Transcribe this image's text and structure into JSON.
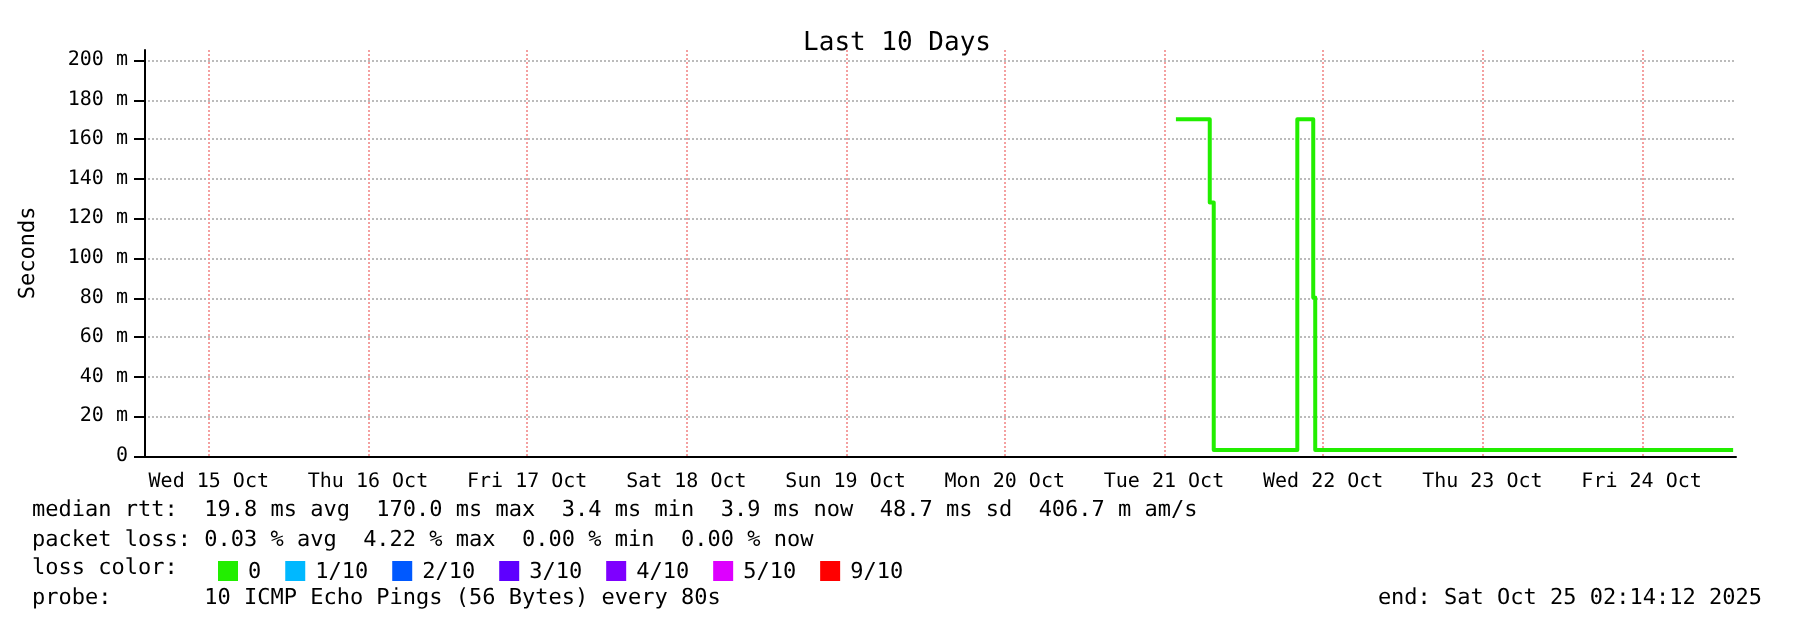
{
  "chart_data": {
    "type": "step",
    "title": "Last 10 Days",
    "ylabel": "Seconds",
    "xlim": [
      "2025-10-15T02:14",
      "2025-10-25T02:14"
    ],
    "xticks": [
      {
        "value": "2025-10-15T12:00",
        "label": "Wed 15 Oct"
      },
      {
        "value": "2025-10-16T12:00",
        "label": "Thu 16 Oct"
      },
      {
        "value": "2025-10-17T12:00",
        "label": "Fri 17 Oct"
      },
      {
        "value": "2025-10-18T12:00",
        "label": "Sat 18 Oct"
      },
      {
        "value": "2025-10-19T12:00",
        "label": "Sun 19 Oct"
      },
      {
        "value": "2025-10-20T12:00",
        "label": "Mon 20 Oct"
      },
      {
        "value": "2025-10-21T12:00",
        "label": "Tue 21 Oct"
      },
      {
        "value": "2025-10-22T12:00",
        "label": "Wed 22 Oct"
      },
      {
        "value": "2025-10-23T12:00",
        "label": "Thu 23 Oct"
      },
      {
        "value": "2025-10-24T12:00",
        "label": "Fri 24 Oct"
      }
    ],
    "ylim": [
      0,
      205
    ],
    "yticks": [
      0,
      {
        "value": 20,
        "label": "20 m"
      },
      {
        "value": 40,
        "label": "40 m"
      },
      {
        "value": 60,
        "label": "60 m"
      },
      {
        "value": 80,
        "label": "80 m"
      },
      {
        "value": 100,
        "label": "100 m"
      },
      {
        "value": 120,
        "label": "120 m"
      },
      {
        "value": 140,
        "label": "140 m"
      },
      {
        "value": 160,
        "label": "160 m"
      },
      {
        "value": 180,
        "label": "180 m"
      },
      {
        "value": 200,
        "label": "200 m"
      }
    ],
    "grid": true,
    "legend": "bottom left",
    "series": [
      {
        "name": "0",
        "color": "#22ee00",
        "x": [
          "2025-10-21T13:48",
          "2025-10-21T18:54",
          "2025-10-21T19:30",
          "2025-10-22T08:06",
          "2025-10-22T10:30",
          "2025-10-22T10:48",
          "2025-10-25T01:48"
        ],
        "values": [
          170,
          128,
          3,
          170,
          80,
          3,
          3
        ]
      },
      {
        "name": "1/10",
        "color": "#00b8ff"
      },
      {
        "name": "2/10",
        "color": "#0059ff"
      },
      {
        "name": "3/10",
        "color": "#5e00ff"
      },
      {
        "name": "4/10",
        "color": "#7e00ff"
      },
      {
        "name": "5/10",
        "color": "#dd00ff"
      },
      {
        "name": "9/10",
        "color": "#ff0000"
      }
    ],
    "annotations": [
      "median rtt:  19.8 ms avg  170.0 ms max  3.4 ms min  3.9 ms now  48.7 ms sd  406.7 m am/s",
      "packet loss: 0.03 % avg  4.22 % max  0.00 % min  0.00 % now",
      "loss color:",
      "probe:       10 ICMP Echo Pings (56 Bytes) every 80s",
      "end: Sat Oct 25 02:14:12 2025"
    ]
  }
}
